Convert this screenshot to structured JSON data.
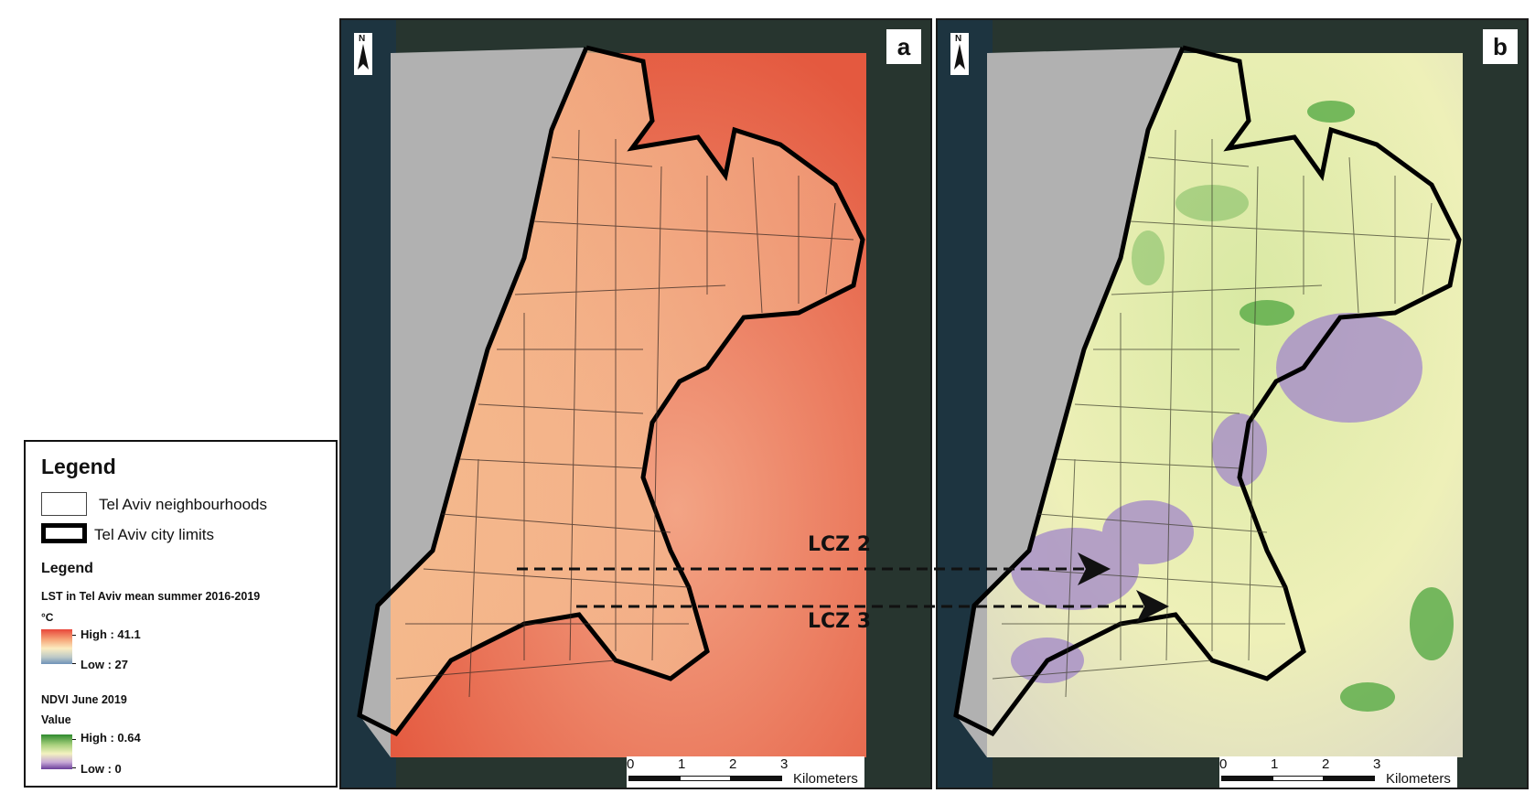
{
  "legend": {
    "title": "Legend",
    "neighbourhoods_label": "Tel Aviv neighbourhoods",
    "city_limits_label": "Tel Aviv city limits",
    "subtitle": "Legend",
    "lst_title": "LST in Tel Aviv mean summer 2016-2019",
    "lst_unit": "°C",
    "lst_high": "High : 41.1",
    "lst_low": "Low : 27",
    "ndvi_title": "NDVI June 2019",
    "ndvi_value_label": "Value",
    "ndvi_high": "High : 0.64",
    "ndvi_low": "Low : 0"
  },
  "panels": {
    "a": {
      "letter": "a",
      "north": "N"
    },
    "b": {
      "letter": "b",
      "north": "N"
    }
  },
  "scalebar": {
    "ticks": [
      "0",
      "1",
      "2",
      "3"
    ],
    "unit": "Kilometers"
  },
  "annotations": {
    "lcz2": "LCZ 2",
    "lcz3": "LCZ 3"
  },
  "colors": {
    "lst_high": "#e8463a",
    "lst_low": "#6f92b8",
    "ndvi_high": "#2e8a2e",
    "ndvi_low": "#6a3d9a",
    "sea": "#b1b1b1"
  }
}
